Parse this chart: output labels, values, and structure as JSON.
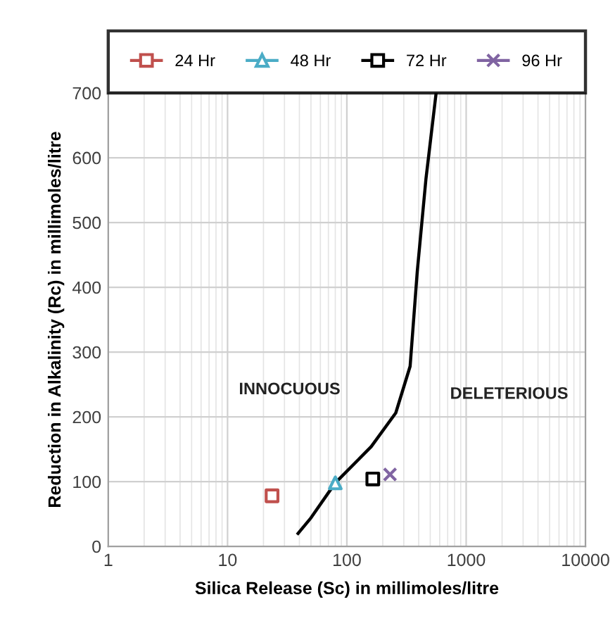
{
  "chart_data": {
    "type": "scatter",
    "xlabel": "Silica Release (Sc) in millimoles/litre",
    "ylabel": "Reduction in Alkalinity (Rc) in millimoles/litre",
    "log": "x",
    "xlim": [
      1,
      10000
    ],
    "xticks": [
      1,
      10,
      100,
      1000,
      10000
    ],
    "ylim": [
      0,
      700
    ],
    "yticks": [
      0,
      100,
      200,
      300,
      400,
      500,
      600,
      700
    ],
    "grid": true,
    "legend": "top",
    "series": [
      {
        "name": "24 Hr",
        "color": "#c0504d",
        "marker": "square",
        "x": [
          23.6
        ],
        "values": [
          78
        ]
      },
      {
        "name": "48 Hr",
        "color": "#4bacc6",
        "marker": "triangle",
        "x": [
          80
        ],
        "values": [
          98
        ]
      },
      {
        "name": "72 Hr",
        "color": "#000000",
        "marker": "square",
        "x": [
          165
        ],
        "values": [
          104
        ]
      },
      {
        "name": "96 Hr",
        "color": "#8064a2",
        "marker": "cross",
        "x": [
          230
        ],
        "values": [
          111
        ]
      },
      {
        "type": "line",
        "color": "#000000",
        "marker": "none",
        "x": [
          39,
          50,
          80,
          160,
          257,
          339,
          389,
          460,
          560
        ],
        "values": [
          20,
          44,
          98,
          154,
          206,
          278,
          424,
          567,
          700
        ]
      }
    ],
    "annotations": [
      "INNOCUOUS",
      "DELETERIOUS"
    ]
  }
}
